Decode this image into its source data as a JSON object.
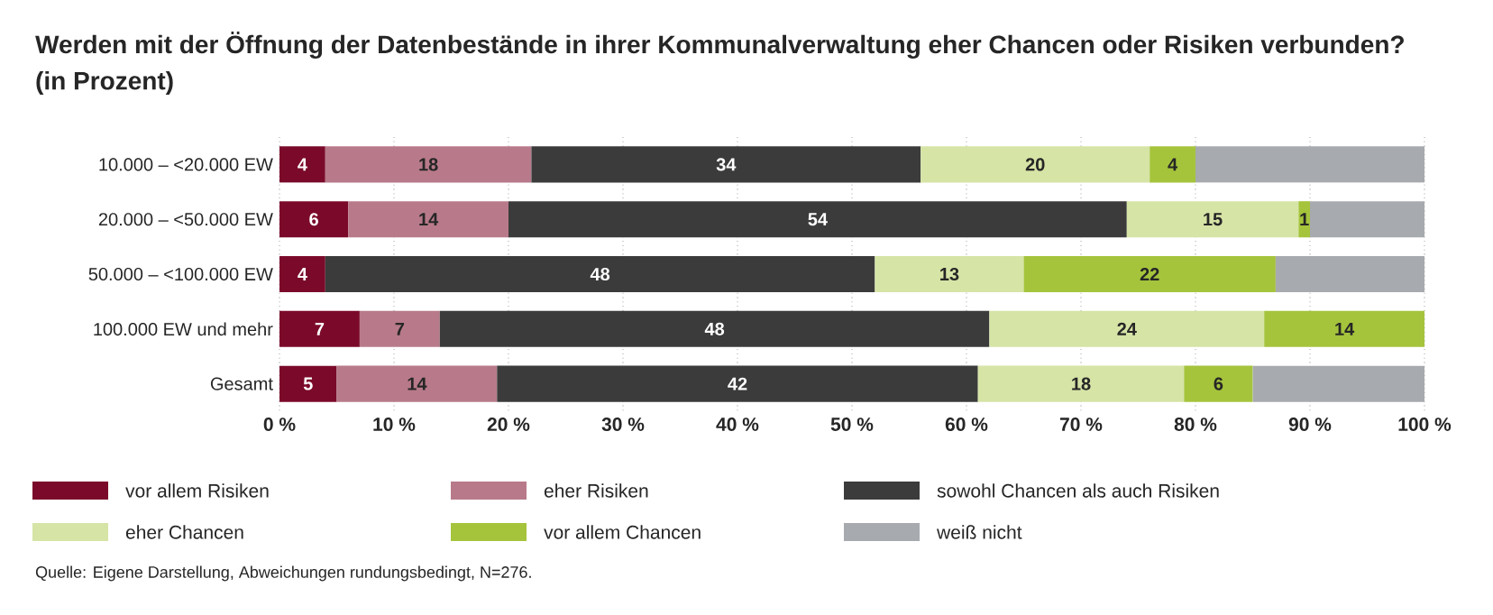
{
  "chart_data": {
    "type": "bar",
    "orientation": "horizontal",
    "stacked": true,
    "title": "Werden mit der Öffnung der Datenbestände in ihrer Kommunalverwaltung eher Chancen oder Risiken verbunden?",
    "subtitle": "(in Prozent)",
    "categories": [
      "10.000 – <20.000 EW",
      "20.000 – <50.000 EW",
      "50.000 – <100.000 EW",
      "100.000 EW und mehr",
      "Gesamt"
    ],
    "series": [
      {
        "name": "vor allem Risiken",
        "color": "#7b0a2a",
        "values": [
          4,
          6,
          4,
          7,
          5
        ],
        "value_labels": [
          "4",
          "6",
          "4",
          "7",
          "5"
        ]
      },
      {
        "name": "eher Risiken",
        "color": "#b87a8a",
        "values": [
          18,
          14,
          null,
          7,
          14
        ],
        "value_labels": [
          "18",
          "14",
          null,
          "7",
          "14"
        ]
      },
      {
        "name": "sowohl Chancen als auch Risiken",
        "color": "#3b3b3b",
        "values": [
          34,
          54,
          48,
          48,
          42
        ],
        "value_labels": [
          "34",
          "54",
          "48",
          "48",
          "42"
        ]
      },
      {
        "name": "eher Chancen",
        "color": "#d6e4a6",
        "values": [
          20,
          15,
          13,
          24,
          18
        ],
        "value_labels": [
          "20",
          "15",
          "13",
          "24",
          "18"
        ]
      },
      {
        "name": "vor allem Chancen",
        "color": "#a5c43c",
        "values": [
          4,
          1,
          22,
          14,
          6
        ],
        "value_labels": [
          "4",
          "1",
          "22",
          "14",
          "6"
        ]
      },
      {
        "name": "weiß nicht",
        "color": "#a7aaae",
        "values": [
          20,
          10,
          13,
          null,
          15
        ],
        "value_labels": [
          null,
          null,
          null,
          null,
          null
        ]
      }
    ],
    "xlim": [
      0,
      100
    ],
    "xticks": [
      {
        "value": 0,
        "label": "0 %"
      },
      {
        "value": 10,
        "label": "10 %"
      },
      {
        "value": 20,
        "label": "20 %"
      },
      {
        "value": 30,
        "label": "30 %"
      },
      {
        "value": 40,
        "label": "40 %"
      },
      {
        "value": 50,
        "label": "50 %"
      },
      {
        "value": 60,
        "label": "60 %"
      },
      {
        "value": 70,
        "label": "70 %"
      },
      {
        "value": 80,
        "label": "80 %"
      },
      {
        "value": 90,
        "label": "90 %"
      },
      {
        "value": 100,
        "label": "100 %"
      }
    ],
    "grid": "x",
    "legend": "bottom",
    "annotations": [
      "Quelle: Eigene Darstellung, Abweichungen rundungsbedingt, N=276."
    ]
  }
}
